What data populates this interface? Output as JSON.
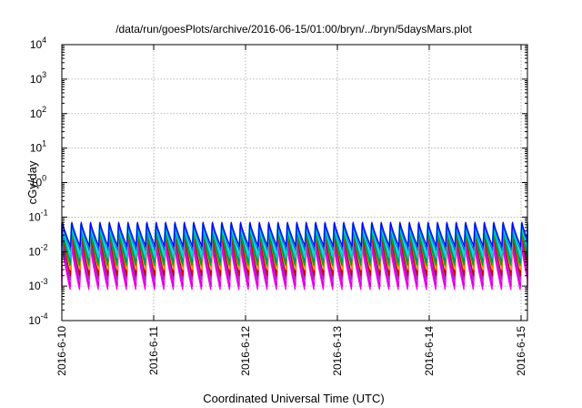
{
  "chart_data": {
    "type": "line",
    "title": "/data/run/goesPlots/archive/2016-06-15/01:00/bryn/../bryn/5daysMars.plot",
    "xlabel": "Coordinated Universal Time (UTC)",
    "ylabel": "cGy/day",
    "yscale": "log",
    "ylim": [
      0.0001,
      10000
    ],
    "y_ticks": [
      {
        "base": "10",
        "exp": "-4",
        "value": 0.0001
      },
      {
        "base": "10",
        "exp": "-3",
        "value": 0.001
      },
      {
        "base": "10",
        "exp": "-2",
        "value": 0.01
      },
      {
        "base": "10",
        "exp": "-1",
        "value": 0.1
      },
      {
        "base": "10",
        "exp": "0",
        "value": 1
      },
      {
        "base": "10",
        "exp": "1",
        "value": 10
      },
      {
        "base": "10",
        "exp": "2",
        "value": 100
      },
      {
        "base": "10",
        "exp": "3",
        "value": 1000
      },
      {
        "base": "10",
        "exp": "4",
        "value": 10000
      }
    ],
    "x_ticks": [
      "2016-6-10",
      "2016-6-11",
      "2016-6-12",
      "2016-6-13",
      "2016-6-14",
      "2016-6-15"
    ],
    "xlim": [
      "2016-6-10",
      "2016-6-15 01:00"
    ],
    "grid": true,
    "spike_period_hours": 2.45,
    "series": [
      {
        "color": "#ff00ff",
        "peak": 0.016,
        "trough": 0.0008
      },
      {
        "color": "#cc00cc",
        "peak": 0.02,
        "trough": 0.001
      },
      {
        "color": "#e040e0",
        "peak": 0.025,
        "trough": 0.0013
      },
      {
        "color": "#9933cc",
        "peak": 0.03,
        "trough": 0.0016
      },
      {
        "color": "#cc0000",
        "peak": 0.035,
        "trough": 0.002
      },
      {
        "color": "#ff8c00",
        "peak": 0.04,
        "trough": 0.003
      },
      {
        "color": "#00aa00",
        "peak": 0.045,
        "trough": 0.004
      },
      {
        "color": "#008888",
        "peak": 0.05,
        "trough": 0.005
      },
      {
        "color": "#00cccc",
        "peak": 0.055,
        "trough": 0.0065
      },
      {
        "color": "#00e0e0",
        "peak": 0.06,
        "trough": 0.0085
      },
      {
        "color": "#0077cc",
        "peak": 0.065,
        "trough": 0.011
      },
      {
        "color": "#0000ff",
        "peak": 0.07,
        "trough": 0.014
      }
    ]
  }
}
